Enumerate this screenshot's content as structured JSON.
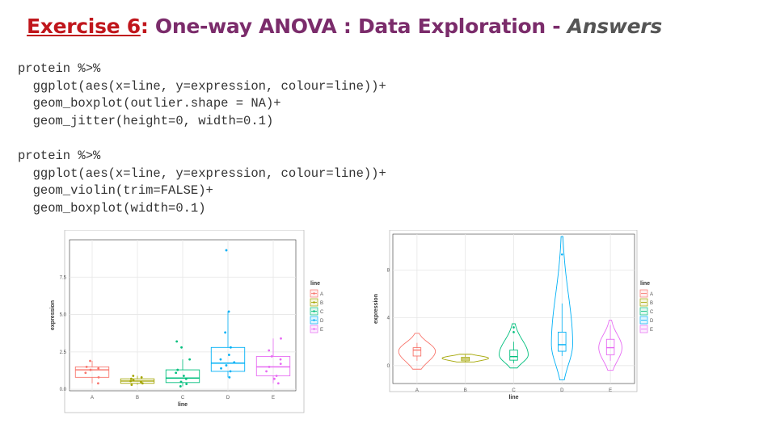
{
  "title": {
    "exercise": "Exercise 6",
    "colon": ":",
    "main": " One-way ANOVA : Data Exploration - ",
    "answers": "Answers"
  },
  "code": {
    "block1": [
      "protein %>%",
      "  ggplot(aes(x=line, y=expression, colour=line))+",
      "  geom_boxplot(outlier.shape = NA)+",
      "  geom_jitter(height=0, width=0.1)"
    ],
    "block2": [
      "protein %>%",
      "  ggplot(aes(x=line, y=expression, colour=line))+",
      "  geom_violin(trim=FALSE)+",
      "  geom_boxplot(width=0.1)"
    ]
  },
  "colors": {
    "A": "#f8766d",
    "B": "#a3a500",
    "C": "#00bf7d",
    "D": "#00b0f6",
    "E": "#e76bf3"
  },
  "chart_data": [
    {
      "type": "boxplot",
      "geom": "boxplot+jitter",
      "xlabel": "line",
      "ylabel": "expression",
      "categories": [
        "A",
        "B",
        "C",
        "D",
        "E"
      ],
      "yticks": [
        "0.0",
        "2.5",
        "5.0",
        "7.5"
      ],
      "ylim": [
        -0.1,
        10
      ],
      "grid": true,
      "legend_title": "line",
      "legend_position": "right",
      "boxes": [
        {
          "q1": 0.8,
          "median": 1.3,
          "q3": 1.5,
          "whisker_low": 0.4,
          "whisker_high": 1.9
        },
        {
          "q1": 0.4,
          "median": 0.55,
          "q3": 0.7,
          "whisker_low": 0.3,
          "whisker_high": 0.9
        },
        {
          "q1": 0.45,
          "median": 0.75,
          "q3": 1.3,
          "whisker_low": 0.2,
          "whisker_high": 2.0
        },
        {
          "q1": 1.2,
          "median": 1.75,
          "q3": 2.8,
          "whisker_low": 0.8,
          "whisker_high": 5.2
        },
        {
          "q1": 0.9,
          "median": 1.5,
          "q3": 2.2,
          "whisker_low": 0.4,
          "whisker_high": 3.4
        }
      ],
      "points": [
        [
          0.4,
          0.8,
          1.1,
          1.3,
          1.4,
          1.5,
          1.9
        ],
        [
          0.3,
          0.4,
          0.5,
          0.55,
          0.6,
          0.7,
          0.8,
          0.9
        ],
        [
          0.2,
          0.35,
          0.5,
          0.7,
          0.9,
          1.1,
          1.3,
          2.0,
          2.8,
          3.2
        ],
        [
          0.8,
          1.2,
          1.4,
          1.6,
          1.8,
          2.0,
          2.3,
          2.8,
          3.8,
          5.2,
          9.3
        ],
        [
          0.4,
          0.7,
          0.9,
          1.2,
          1.5,
          1.7,
          2.0,
          2.2,
          2.6,
          3.4
        ]
      ]
    },
    {
      "type": "violin",
      "geom": "violin+boxplot",
      "xlabel": "line",
      "ylabel": "expression",
      "categories": [
        "A",
        "B",
        "C",
        "D",
        "E"
      ],
      "yticks": [
        "0",
        "4",
        "8"
      ],
      "ylim": [
        -1.5,
        11
      ],
      "grid": true,
      "legend_title": "line",
      "legend_position": "right",
      "violins": [
        {
          "low": -0.3,
          "high": 2.7,
          "mode": 1.2,
          "width": 0.38
        },
        {
          "low": 0.3,
          "high": 0.95,
          "mode": 0.62,
          "width": 0.48
        },
        {
          "low": -0.2,
          "high": 3.5,
          "mode": 0.9,
          "width": 0.3
        },
        {
          "low": -1.2,
          "high": 10.8,
          "mode": 1.8,
          "width": 0.22
        },
        {
          "low": -0.4,
          "high": 3.8,
          "mode": 1.5,
          "width": 0.24
        }
      ],
      "boxes": [
        {
          "q1": 0.8,
          "median": 1.3,
          "q3": 1.5,
          "whisker_low": 0.4,
          "whisker_high": 1.9
        },
        {
          "q1": 0.4,
          "median": 0.55,
          "q3": 0.7,
          "whisker_low": 0.3,
          "whisker_high": 0.9
        },
        {
          "q1": 0.45,
          "median": 0.75,
          "q3": 1.3,
          "whisker_low": 0.2,
          "whisker_high": 2.0
        },
        {
          "q1": 1.2,
          "median": 1.75,
          "q3": 2.8,
          "whisker_low": 0.8,
          "whisker_high": 5.2
        },
        {
          "q1": 0.9,
          "median": 1.5,
          "q3": 2.2,
          "whisker_low": 0.4,
          "whisker_high": 3.4
        }
      ],
      "outliers": [
        [],
        [],
        [
          2.8,
          3.2
        ],
        [
          9.3
        ],
        []
      ]
    }
  ]
}
